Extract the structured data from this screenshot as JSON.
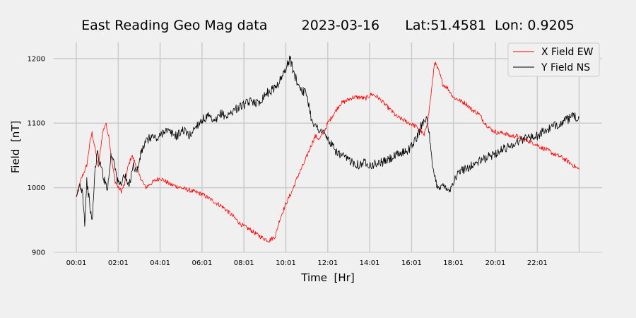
{
  "chart_data": {
    "type": "line",
    "title": "East Reading Geo Mag data        2023-03-16      Lat:51.4581  Lon: 0.9205",
    "xlabel": "Time  [Hr]",
    "ylabel": "Field  [nT]",
    "x_ticks": [
      "00:01",
      "02:01",
      "04:01",
      "06:01",
      "08:01",
      "10:01",
      "12:01",
      "14:01",
      "16:01",
      "18:01",
      "20:01",
      "22:01"
    ],
    "x_range": [
      0,
      24
    ],
    "ylim": [
      900,
      1225
    ],
    "y_ticks": [
      900,
      1000,
      1100,
      1200
    ],
    "grid": true,
    "legend_position": "top-right",
    "series": [
      {
        "name": "X Field EW",
        "color": "#ff0000",
        "x": [
          0,
          0.25,
          0.5,
          0.65,
          0.75,
          0.9,
          1.05,
          1.25,
          1.4,
          1.55,
          1.7,
          1.85,
          2.0,
          2.15,
          2.3,
          2.45,
          2.65,
          2.85,
          3.0,
          3.3,
          3.7,
          4.0,
          4.5,
          5.0,
          5.5,
          6.0,
          6.5,
          7.0,
          7.5,
          7.8,
          8.0,
          8.3,
          8.6,
          8.9,
          9.2,
          9.5,
          9.7,
          10.0,
          10.3,
          10.6,
          10.9,
          11.2,
          11.4,
          11.6,
          11.8,
          12.0,
          12.3,
          12.6,
          12.9,
          13.2,
          13.5,
          13.8,
          14.1,
          14.4,
          14.7,
          15.0,
          15.3,
          15.6,
          15.9,
          16.2,
          16.4,
          16.6,
          16.8,
          16.95,
          17.1,
          17.3,
          17.5,
          17.7,
          18.0,
          18.3,
          18.6,
          18.9,
          19.2,
          19.5,
          19.8,
          20.1,
          20.4,
          20.7,
          21.0,
          21.3,
          21.6,
          21.9,
          22.2,
          22.5,
          22.8,
          23.1,
          23.4,
          23.7,
          24.0
        ],
        "values": [
          985,
          1015,
          1035,
          1070,
          1085,
          1060,
          1030,
          1085,
          1100,
          1080,
          1040,
          1010,
          1000,
          995,
          1005,
          1030,
          1050,
          1035,
          1020,
          1000,
          1010,
          1015,
          1005,
          1000,
          995,
          990,
          980,
          970,
          955,
          945,
          940,
          935,
          928,
          922,
          918,
          925,
          950,
          975,
          995,
          1020,
          1040,
          1065,
          1080,
          1075,
          1085,
          1100,
          1115,
          1130,
          1135,
          1140,
          1140,
          1138,
          1145,
          1140,
          1130,
          1120,
          1110,
          1105,
          1100,
          1095,
          1090,
          1080,
          1110,
          1150,
          1195,
          1180,
          1160,
          1155,
          1140,
          1135,
          1130,
          1120,
          1115,
          1100,
          1090,
          1085,
          1085,
          1080,
          1080,
          1075,
          1072,
          1068,
          1062,
          1058,
          1052,
          1048,
          1042,
          1035,
          1028
        ]
      },
      {
        "name": "Y Field NS",
        "color": "#000000",
        "x": [
          0,
          0.15,
          0.3,
          0.4,
          0.5,
          0.6,
          0.75,
          0.9,
          1.0,
          1.1,
          1.2,
          1.35,
          1.5,
          1.65,
          1.8,
          1.95,
          2.1,
          2.3,
          2.5,
          2.7,
          2.9,
          3.1,
          3.3,
          3.6,
          3.9,
          4.2,
          4.5,
          4.8,
          5.1,
          5.4,
          5.7,
          6.0,
          6.3,
          6.6,
          6.9,
          7.2,
          7.5,
          7.8,
          8.1,
          8.4,
          8.7,
          9.0,
          9.3,
          9.6,
          9.8,
          10.0,
          10.2,
          10.4,
          10.6,
          10.8,
          11.0,
          11.2,
          11.4,
          11.6,
          11.8,
          12.0,
          12.3,
          12.6,
          12.9,
          13.2,
          13.5,
          13.8,
          14.1,
          14.4,
          14.7,
          15.0,
          15.3,
          15.6,
          15.9,
          16.1,
          16.3,
          16.5,
          16.7,
          16.85,
          17.0,
          17.2,
          17.4,
          17.6,
          17.8,
          18.0,
          18.3,
          18.6,
          18.9,
          19.2,
          19.5,
          19.8,
          20.1,
          20.4,
          20.7,
          21.0,
          21.3,
          21.6,
          21.9,
          22.2,
          22.5,
          22.8,
          23.1,
          23.4,
          23.7,
          24.0
        ],
        "values": [
          980,
          1005,
          995,
          945,
          1010,
          985,
          945,
          1030,
          1055,
          1040,
          1030,
          1010,
          1000,
          1050,
          1045,
          1010,
          1005,
          1020,
          1000,
          1035,
          1025,
          1055,
          1070,
          1080,
          1075,
          1090,
          1085,
          1080,
          1090,
          1080,
          1095,
          1105,
          1110,
          1100,
          1115,
          1110,
          1120,
          1125,
          1130,
          1135,
          1130,
          1145,
          1150,
          1160,
          1170,
          1185,
          1200,
          1175,
          1160,
          1150,
          1145,
          1110,
          1095,
          1090,
          1085,
          1075,
          1060,
          1050,
          1045,
          1040,
          1035,
          1040,
          1035,
          1038,
          1040,
          1045,
          1050,
          1055,
          1060,
          1070,
          1080,
          1100,
          1110,
          1080,
          1030,
          1005,
          1000,
          1005,
          995,
          1010,
          1025,
          1030,
          1035,
          1040,
          1045,
          1050,
          1055,
          1060,
          1065,
          1070,
          1075,
          1080,
          1078,
          1085,
          1090,
          1095,
          1100,
          1105,
          1110,
          1108
        ]
      }
    ]
  }
}
